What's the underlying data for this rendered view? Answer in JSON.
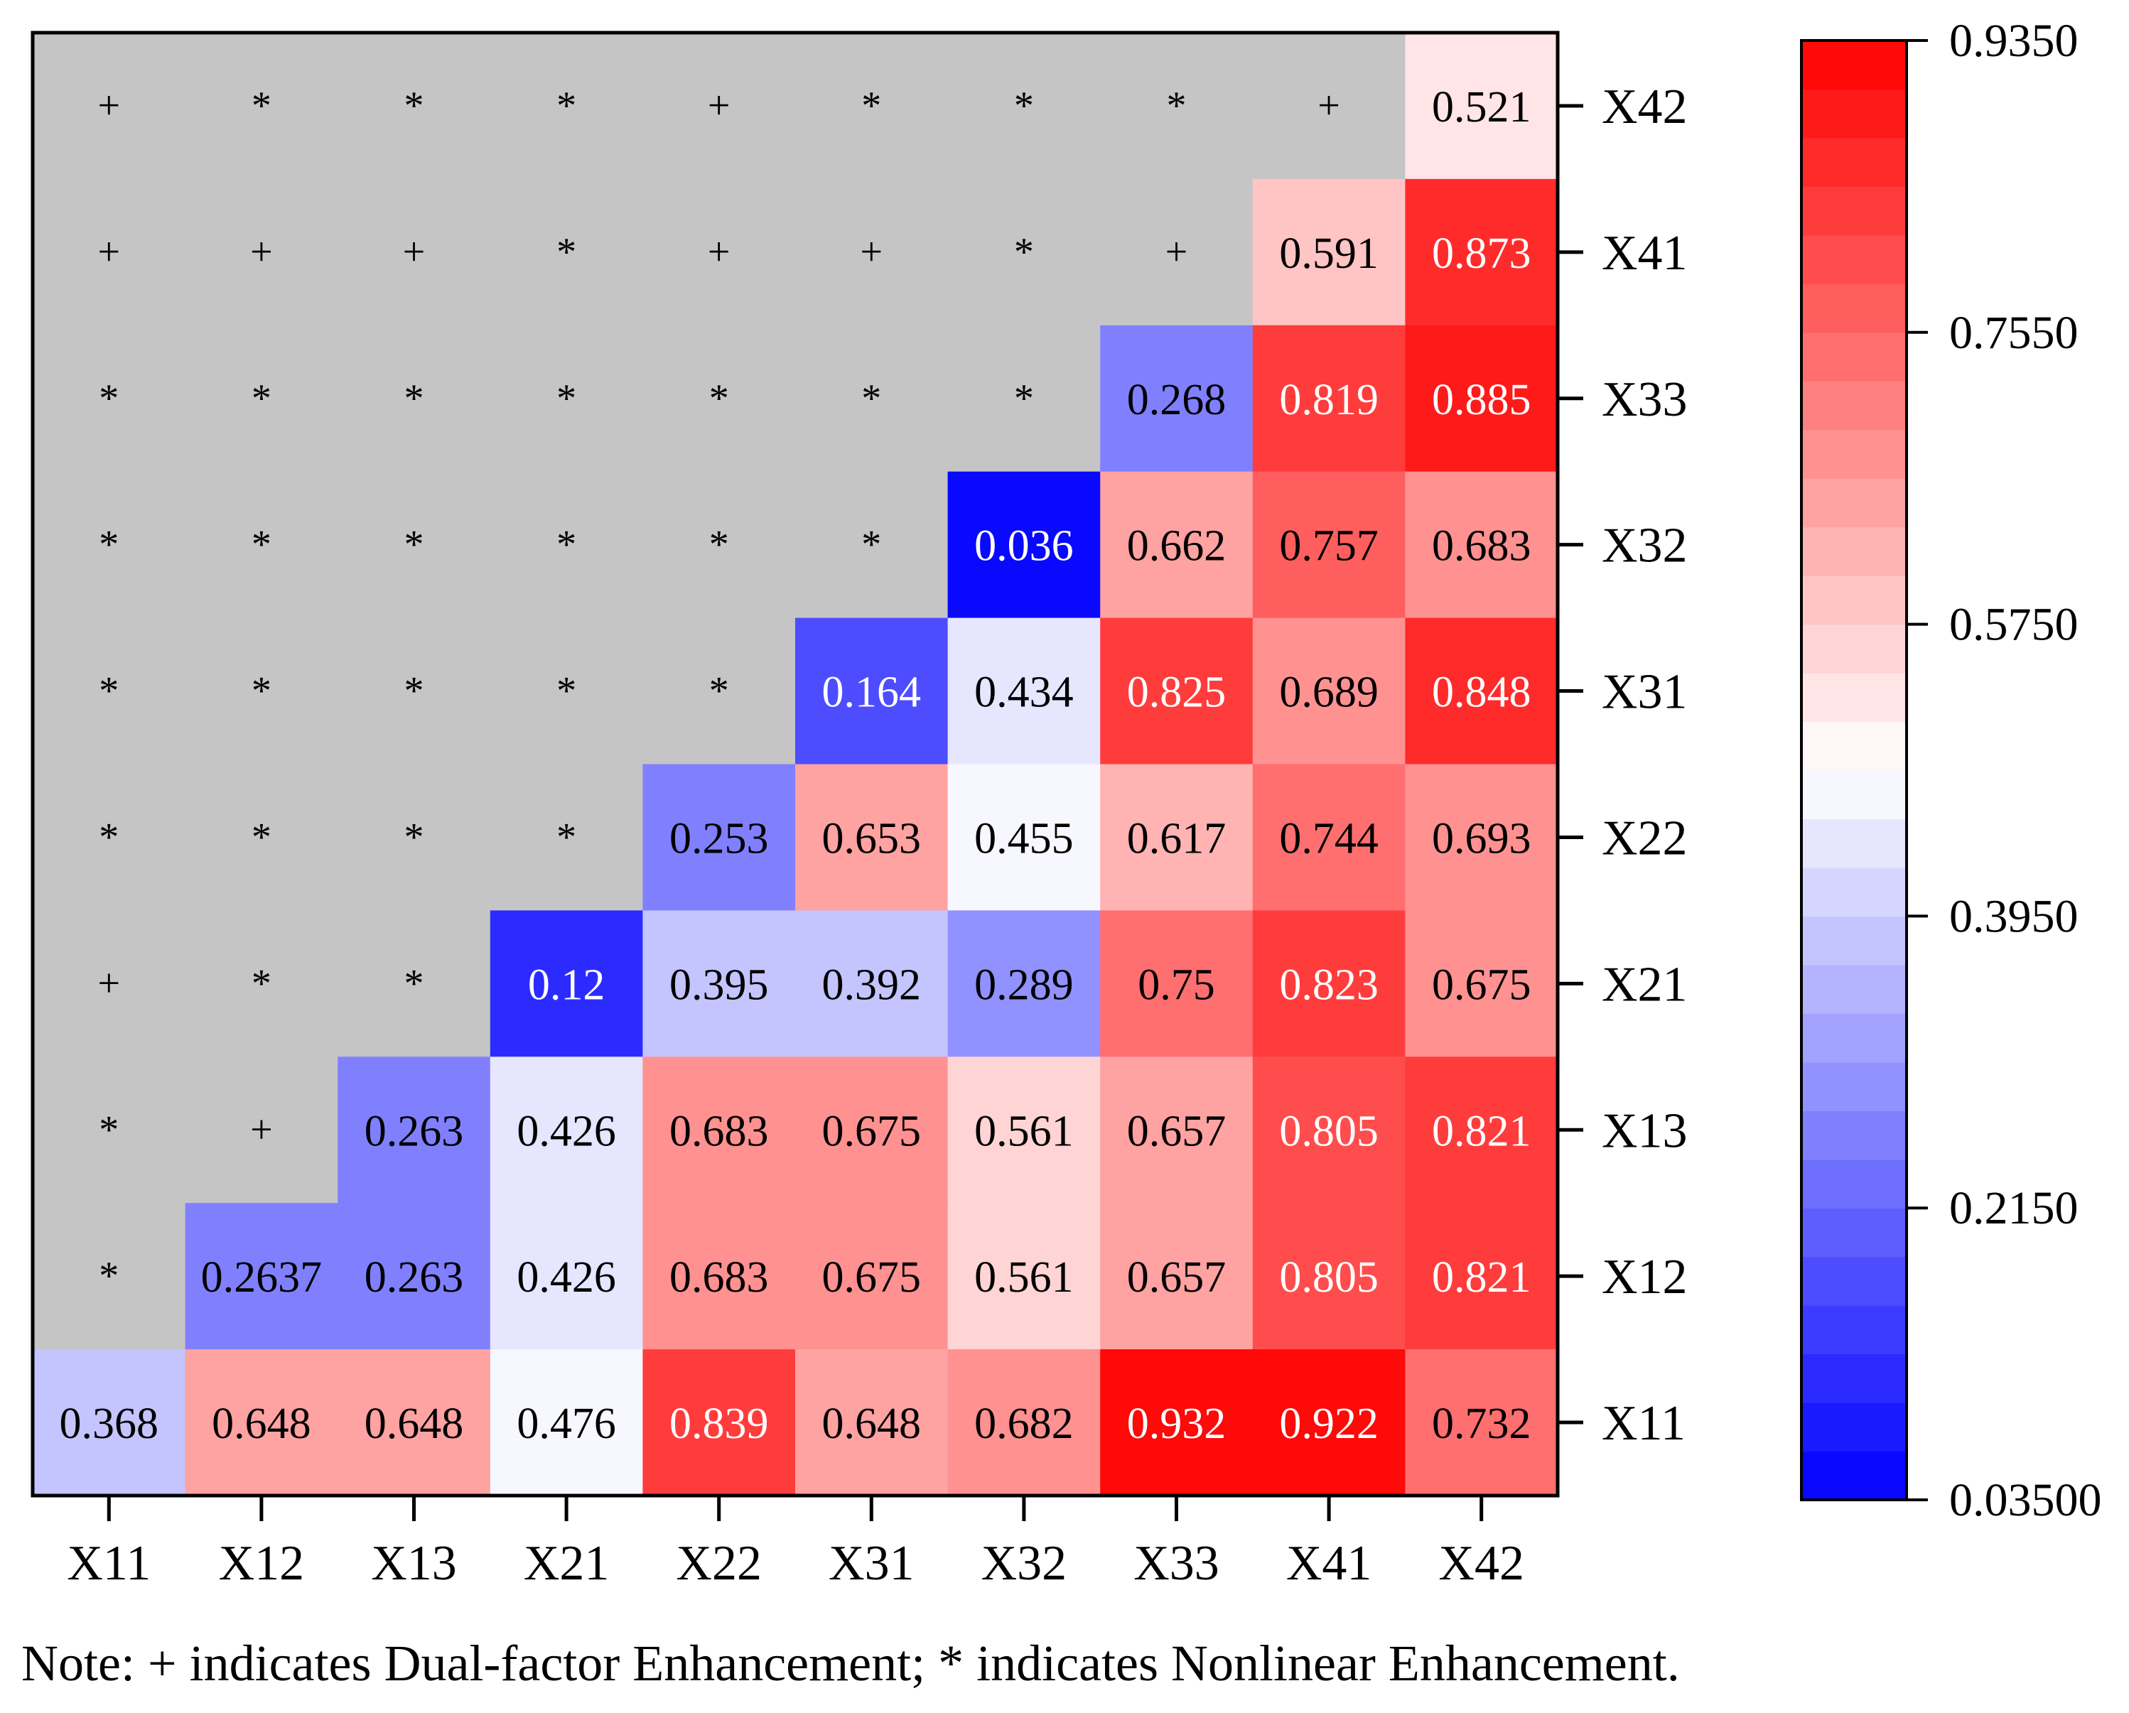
{
  "chart_data": {
    "type": "heatmap",
    "title": "",
    "xlabel": "",
    "ylabel": "",
    "x_categories": [
      "X11",
      "X12",
      "X13",
      "X21",
      "X22",
      "X31",
      "X32",
      "X33",
      "X41",
      "X42"
    ],
    "y_categories_bottom_to_top": [
      "X11",
      "X12",
      "X13",
      "X21",
      "X22",
      "X31",
      "X32",
      "X33",
      "X41",
      "X42"
    ],
    "rows_top_to_bottom": [
      {
        "y": "X42",
        "cells": [
          "+",
          "*",
          "*",
          "*",
          "+",
          "*",
          "*",
          "*",
          "+",
          0.521
        ]
      },
      {
        "y": "X41",
        "cells": [
          "+",
          "+",
          "+",
          "*",
          "+",
          "+",
          "*",
          "+",
          0.591,
          0.873
        ]
      },
      {
        "y": "X33",
        "cells": [
          "*",
          "*",
          "*",
          "*",
          "*",
          "*",
          "*",
          0.268,
          0.819,
          0.885
        ]
      },
      {
        "y": "X32",
        "cells": [
          "*",
          "*",
          "*",
          "*",
          "*",
          "*",
          0.036,
          0.662,
          0.757,
          0.683
        ]
      },
      {
        "y": "X31",
        "cells": [
          "*",
          "*",
          "*",
          "*",
          "*",
          0.164,
          0.434,
          0.825,
          0.689,
          0.848
        ]
      },
      {
        "y": "X22",
        "cells": [
          "*",
          "*",
          "*",
          "*",
          0.253,
          0.653,
          0.455,
          0.617,
          0.744,
          0.693
        ]
      },
      {
        "y": "X21",
        "cells": [
          "+",
          "*",
          "*",
          0.12,
          0.395,
          0.392,
          0.289,
          0.75,
          0.823,
          0.675
        ]
      },
      {
        "y": "X13",
        "cells": [
          "*",
          "+",
          0.263,
          0.426,
          0.683,
          0.675,
          0.561,
          0.657,
          0.805,
          0.821
        ]
      },
      {
        "y": "X12",
        "cells": [
          "*",
          0.2637,
          0.263,
          0.426,
          0.683,
          0.675,
          0.561,
          0.657,
          0.805,
          0.821
        ]
      },
      {
        "y": "X11",
        "cells": [
          0.368,
          0.648,
          0.648,
          0.476,
          0.839,
          0.648,
          0.682,
          0.932,
          0.922,
          0.732
        ]
      }
    ],
    "colorbar": {
      "min": 0.035,
      "max": 0.935,
      "ticks": [
        "0.9350",
        "0.7550",
        "0.5750",
        "0.3950",
        "0.2150",
        "0.03500"
      ],
      "low_color": "#0000ff",
      "mid_color": "#ffffff",
      "high_color": "#ff0000",
      "levels": 30
    },
    "symbol_cell_color": "#c5c5c5"
  },
  "note": "Note: + indicates Dual-factor Enhancement; * indicates Nonlinear Enhancement."
}
